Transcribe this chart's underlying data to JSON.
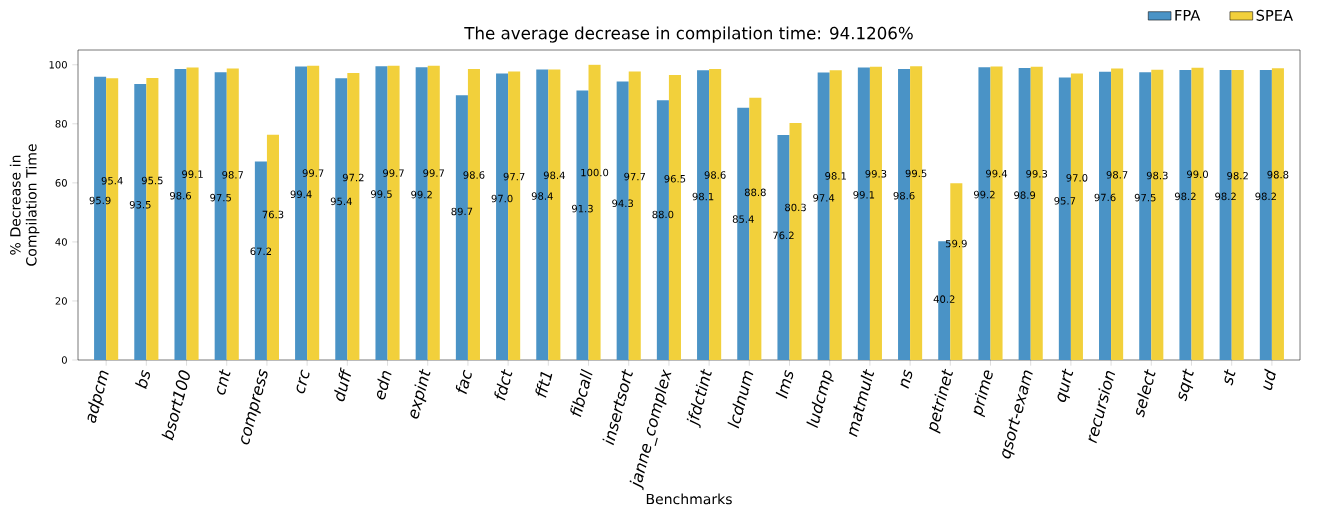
{
  "chart_data": {
    "type": "bar",
    "title": "The average decrease in compilation time: 94.1206%",
    "xlabel": "Benchmarks",
    "ylabel": "% Decrease in Compilation Time",
    "categories": [
      "adpcm",
      "bs",
      "bsort100",
      "cnt",
      "compress",
      "crc",
      "duff",
      "edn",
      "expint",
      "fac",
      "fdct",
      "fft1",
      "fibcall",
      "insertsort",
      "janne_complex",
      "jfdctint",
      "lcdnum",
      "lms",
      "ludcmp",
      "matmult",
      "ns",
      "petrinet",
      "prime",
      "qsort-exam",
      "qurt",
      "recursion",
      "select",
      "sqrt",
      "st",
      "ud"
    ],
    "series": [
      {
        "name": "FPA",
        "color": "#4a93c6",
        "values": [
          95.9,
          93.5,
          98.6,
          97.5,
          67.2,
          99.4,
          95.4,
          99.5,
          99.2,
          89.7,
          97.0,
          98.4,
          91.3,
          94.3,
          88.0,
          98.1,
          85.4,
          76.2,
          97.4,
          99.1,
          98.6,
          40.2,
          99.2,
          98.9,
          95.7,
          97.6,
          97.5,
          98.2,
          98.2,
          98.2
        ],
        "value_labels": [
          "95.9",
          "93.5",
          "98.6",
          "97.5",
          "67.2",
          "99.4",
          "95.4",
          "99.5",
          "99.2",
          "89.7",
          "97.0",
          "98.4",
          "91.3",
          "94.3",
          "88.0",
          "98.1",
          "85.4",
          "76.2",
          "97.4",
          "99.1",
          "98.6",
          "40.2",
          "99.2",
          "98.9",
          "95.7",
          "97.6",
          "97.5",
          "98.2",
          "98.2",
          "98.2"
        ]
      },
      {
        "name": "SPEA",
        "color": "#f2d03b",
        "values": [
          95.4,
          95.5,
          99.1,
          98.7,
          76.3,
          99.7,
          97.2,
          99.7,
          99.7,
          98.6,
          97.7,
          98.4,
          100.0,
          97.7,
          96.5,
          98.6,
          88.8,
          80.3,
          98.1,
          99.3,
          99.5,
          59.9,
          99.4,
          99.3,
          97.0,
          98.7,
          98.3,
          99.0,
          98.2,
          98.8
        ],
        "value_labels": [
          "95.4",
          "95.5",
          "99.1",
          "98.7",
          "76.3",
          "99.7",
          "97.2",
          "99.7",
          "99.7",
          "98.6",
          "97.7",
          "98.4",
          "100.0",
          "97.7",
          "96.5",
          "98.6",
          "88.8",
          "80.3",
          "98.1",
          "99.3",
          "99.5",
          "59.9",
          "99.4",
          "99.3",
          "97.0",
          "98.7",
          "98.3",
          "99.0",
          "98.2",
          "98.8"
        ]
      }
    ],
    "ylim": [
      0,
      105
    ],
    "yticks": [
      0,
      20,
      40,
      60,
      80,
      100
    ],
    "legend": "top right"
  }
}
